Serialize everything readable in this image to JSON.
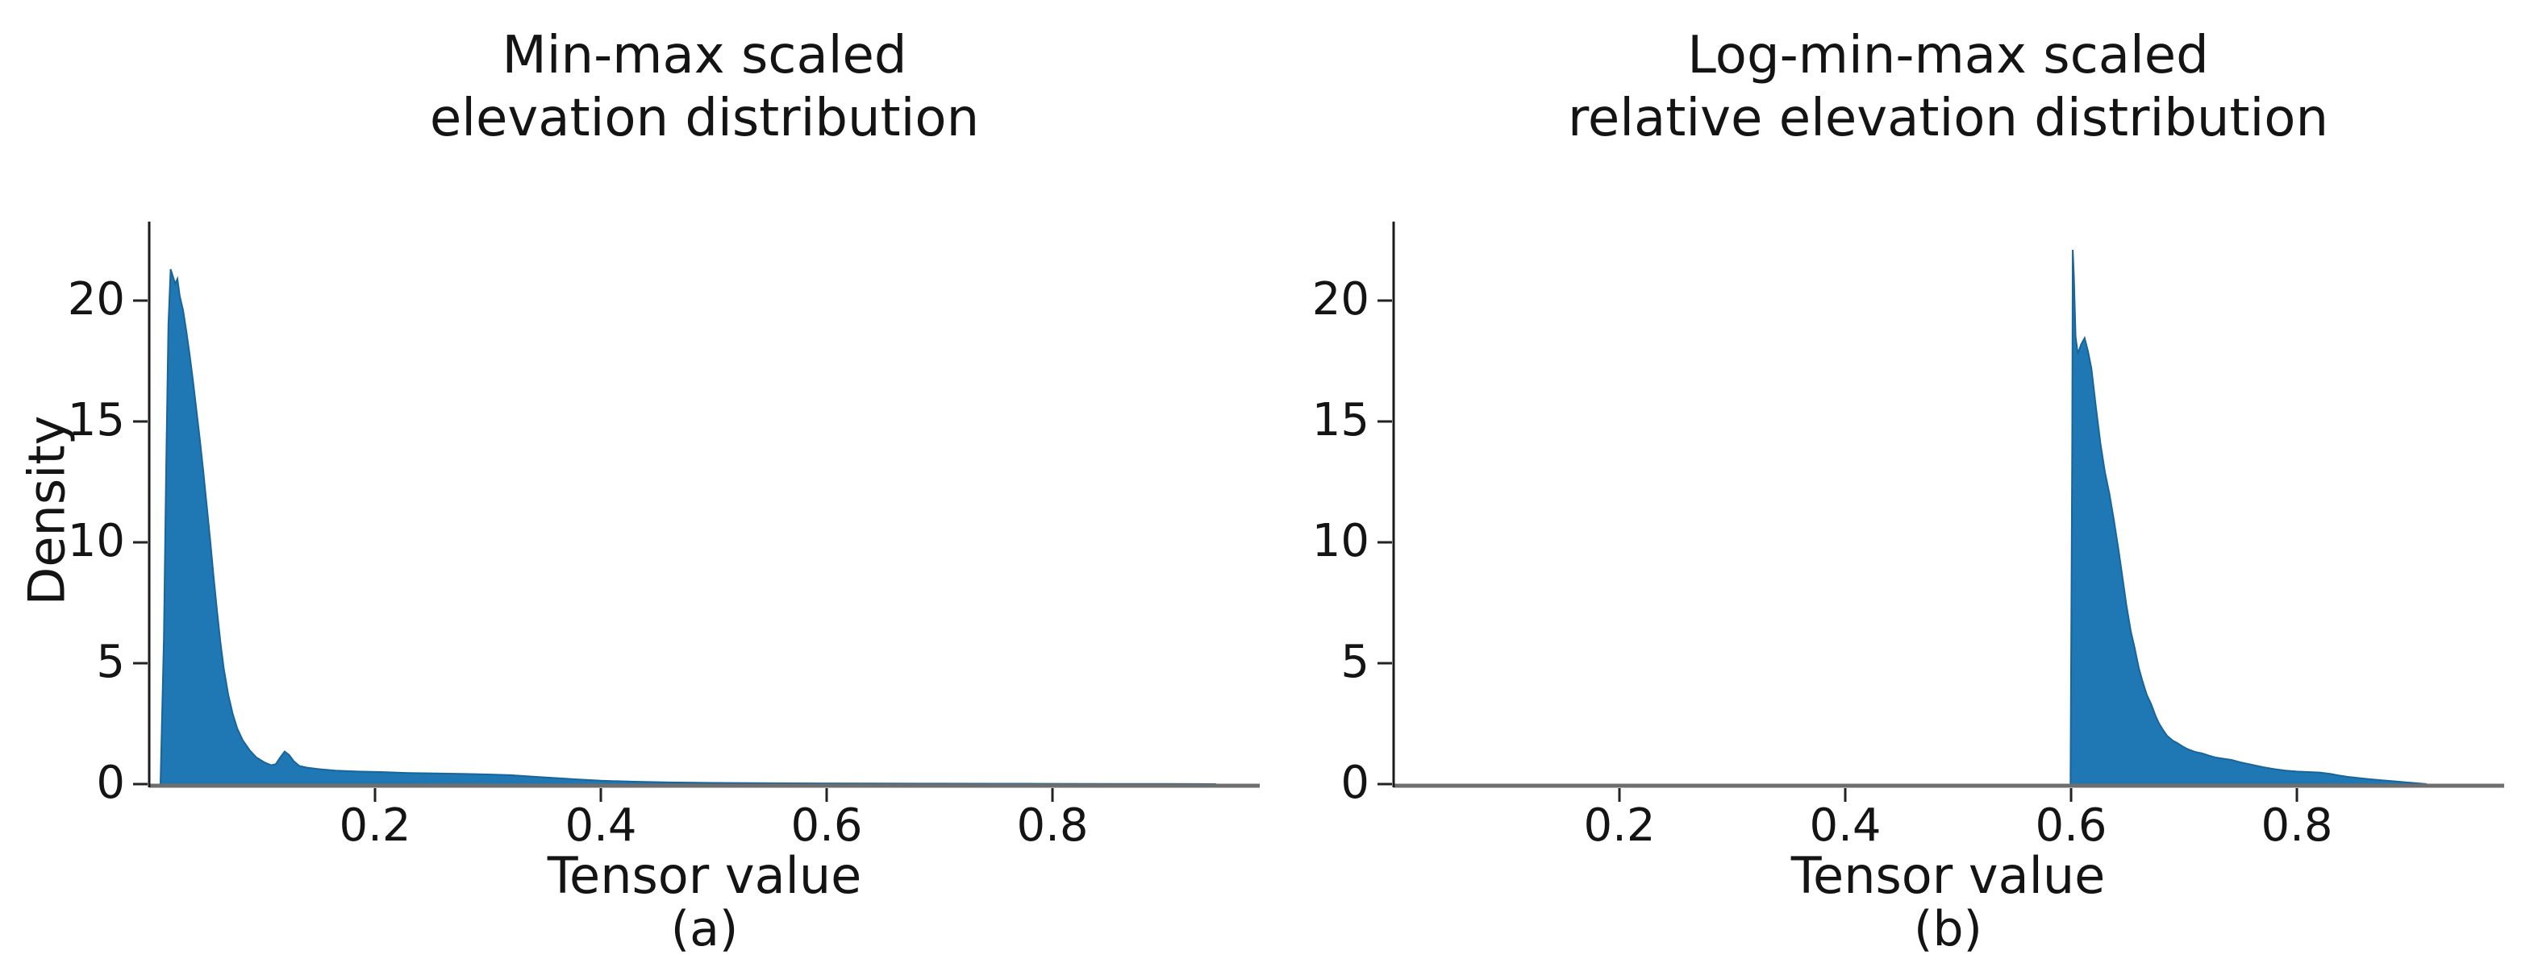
{
  "figure": {
    "background": "#ffffff"
  },
  "colors": {
    "fill": "#1f77b4",
    "edge": "#19659b",
    "spine": "#1a1a1a",
    "baseline": "#6e6e6e",
    "tick": "#222222",
    "text": "#141414"
  },
  "panels": [
    {
      "id": "a",
      "title_line1": "Min-max scaled",
      "title_line2": "elevation distribution",
      "xlabel": "Tensor value",
      "ylabel": "Density",
      "caption": "(a)",
      "xtick_labels": [
        "0.2",
        "0.4",
        "0.6",
        "0.8"
      ],
      "ytick_labels": [
        "0",
        "5",
        "10",
        "15",
        "20"
      ]
    },
    {
      "id": "b",
      "title_line1": "Log-min-max scaled",
      "title_line2": "relative elevation distribution",
      "xlabel": "Tensor value",
      "ylabel": null,
      "caption": "(b)",
      "xtick_labels": [
        "0.2",
        "0.4",
        "0.6",
        "0.8"
      ],
      "ytick_labels": [
        "0",
        "5",
        "10",
        "15",
        "20"
      ]
    }
  ],
  "chart_data": [
    {
      "type": "area",
      "title": "Min-max scaled elevation distribution",
      "xlabel": "Tensor value",
      "ylabel": "Density",
      "xlim": [
        0,
        0.984
      ],
      "ylim": [
        0,
        23.3
      ],
      "xticks": [
        0.2,
        0.4,
        0.6,
        0.8
      ],
      "yticks": [
        0,
        5,
        10,
        15,
        20
      ],
      "grid": false,
      "legend": null,
      "peak": {
        "x": 0.019,
        "y": 21.3
      },
      "points": [
        [
          0.01,
          0
        ],
        [
          0.013,
          6
        ],
        [
          0.015,
          13
        ],
        [
          0.017,
          19
        ],
        [
          0.019,
          21.3
        ],
        [
          0.021,
          21.0
        ],
        [
          0.023,
          20.7
        ],
        [
          0.025,
          20.9
        ],
        [
          0.027,
          20.2
        ],
        [
          0.03,
          19.6
        ],
        [
          0.033,
          18.7
        ],
        [
          0.036,
          17.7
        ],
        [
          0.039,
          16.6
        ],
        [
          0.042,
          15.4
        ],
        [
          0.045,
          14.2
        ],
        [
          0.048,
          12.9
        ],
        [
          0.051,
          11.5
        ],
        [
          0.054,
          10.1
        ],
        [
          0.057,
          8.6
        ],
        [
          0.06,
          7.2
        ],
        [
          0.063,
          5.9
        ],
        [
          0.066,
          4.8
        ],
        [
          0.07,
          3.7
        ],
        [
          0.074,
          2.9
        ],
        [
          0.078,
          2.3
        ],
        [
          0.083,
          1.8
        ],
        [
          0.089,
          1.4
        ],
        [
          0.095,
          1.1
        ],
        [
          0.102,
          0.9
        ],
        [
          0.108,
          0.78
        ],
        [
          0.112,
          0.82
        ],
        [
          0.116,
          1.1
        ],
        [
          0.12,
          1.35
        ],
        [
          0.124,
          1.2
        ],
        [
          0.128,
          0.95
        ],
        [
          0.133,
          0.75
        ],
        [
          0.14,
          0.68
        ],
        [
          0.15,
          0.62
        ],
        [
          0.165,
          0.56
        ],
        [
          0.185,
          0.52
        ],
        [
          0.205,
          0.5
        ],
        [
          0.23,
          0.46
        ],
        [
          0.255,
          0.44
        ],
        [
          0.28,
          0.42
        ],
        [
          0.3,
          0.4
        ],
        [
          0.32,
          0.37
        ],
        [
          0.34,
          0.31
        ],
        [
          0.36,
          0.25
        ],
        [
          0.38,
          0.19
        ],
        [
          0.4,
          0.14
        ],
        [
          0.43,
          0.1
        ],
        [
          0.46,
          0.07
        ],
        [
          0.5,
          0.05
        ],
        [
          0.55,
          0.038
        ],
        [
          0.6,
          0.03
        ],
        [
          0.65,
          0.024
        ],
        [
          0.7,
          0.02
        ],
        [
          0.75,
          0.016
        ],
        [
          0.8,
          0.013
        ],
        [
          0.85,
          0.01
        ],
        [
          0.9,
          0.007
        ],
        [
          0.93,
          0.004
        ],
        [
          0.945,
          0
        ]
      ]
    },
    {
      "type": "area",
      "title": "Log-min-max scaled relative elevation distribution",
      "xlabel": "Tensor value",
      "ylabel": "Density",
      "xlim": [
        0,
        0.984
      ],
      "ylim": [
        0,
        23.3
      ],
      "xticks": [
        0.2,
        0.4,
        0.6,
        0.8
      ],
      "yticks": [
        0,
        5,
        10,
        15,
        20
      ],
      "grid": false,
      "legend": null,
      "peak": {
        "x": 0.6015,
        "y": 22.1
      },
      "points": [
        [
          0.5995,
          0
        ],
        [
          0.601,
          14
        ],
        [
          0.6015,
          22.1
        ],
        [
          0.6025,
          21.0
        ],
        [
          0.604,
          18.5
        ],
        [
          0.606,
          17.8
        ],
        [
          0.609,
          18.2
        ],
        [
          0.612,
          18.45
        ],
        [
          0.615,
          17.9
        ],
        [
          0.618,
          17.2
        ],
        [
          0.622,
          15.6
        ],
        [
          0.626,
          14.1
        ],
        [
          0.63,
          12.9
        ],
        [
          0.634,
          12.0
        ],
        [
          0.638,
          10.9
        ],
        [
          0.642,
          9.7
        ],
        [
          0.646,
          8.4
        ],
        [
          0.649,
          7.4
        ],
        [
          0.653,
          6.3
        ],
        [
          0.656,
          5.7
        ],
        [
          0.66,
          4.8
        ],
        [
          0.663,
          4.3
        ],
        [
          0.667,
          3.7
        ],
        [
          0.671,
          3.3
        ],
        [
          0.675,
          2.8
        ],
        [
          0.678,
          2.5
        ],
        [
          0.682,
          2.2
        ],
        [
          0.685,
          2.0
        ],
        [
          0.69,
          1.8
        ],
        [
          0.694,
          1.7
        ],
        [
          0.699,
          1.55
        ],
        [
          0.704,
          1.43
        ],
        [
          0.71,
          1.33
        ],
        [
          0.716,
          1.27
        ],
        [
          0.722,
          1.18
        ],
        [
          0.728,
          1.1
        ],
        [
          0.735,
          1.05
        ],
        [
          0.742,
          1.0
        ],
        [
          0.75,
          0.9
        ],
        [
          0.76,
          0.8
        ],
        [
          0.77,
          0.7
        ],
        [
          0.78,
          0.62
        ],
        [
          0.79,
          0.56
        ],
        [
          0.8,
          0.52
        ],
        [
          0.81,
          0.5
        ],
        [
          0.82,
          0.48
        ],
        [
          0.83,
          0.42
        ],
        [
          0.837,
          0.36
        ],
        [
          0.845,
          0.3
        ],
        [
          0.855,
          0.25
        ],
        [
          0.865,
          0.2
        ],
        [
          0.875,
          0.16
        ],
        [
          0.885,
          0.12
        ],
        [
          0.895,
          0.08
        ],
        [
          0.905,
          0.04
        ],
        [
          0.915,
          0
        ]
      ]
    }
  ]
}
